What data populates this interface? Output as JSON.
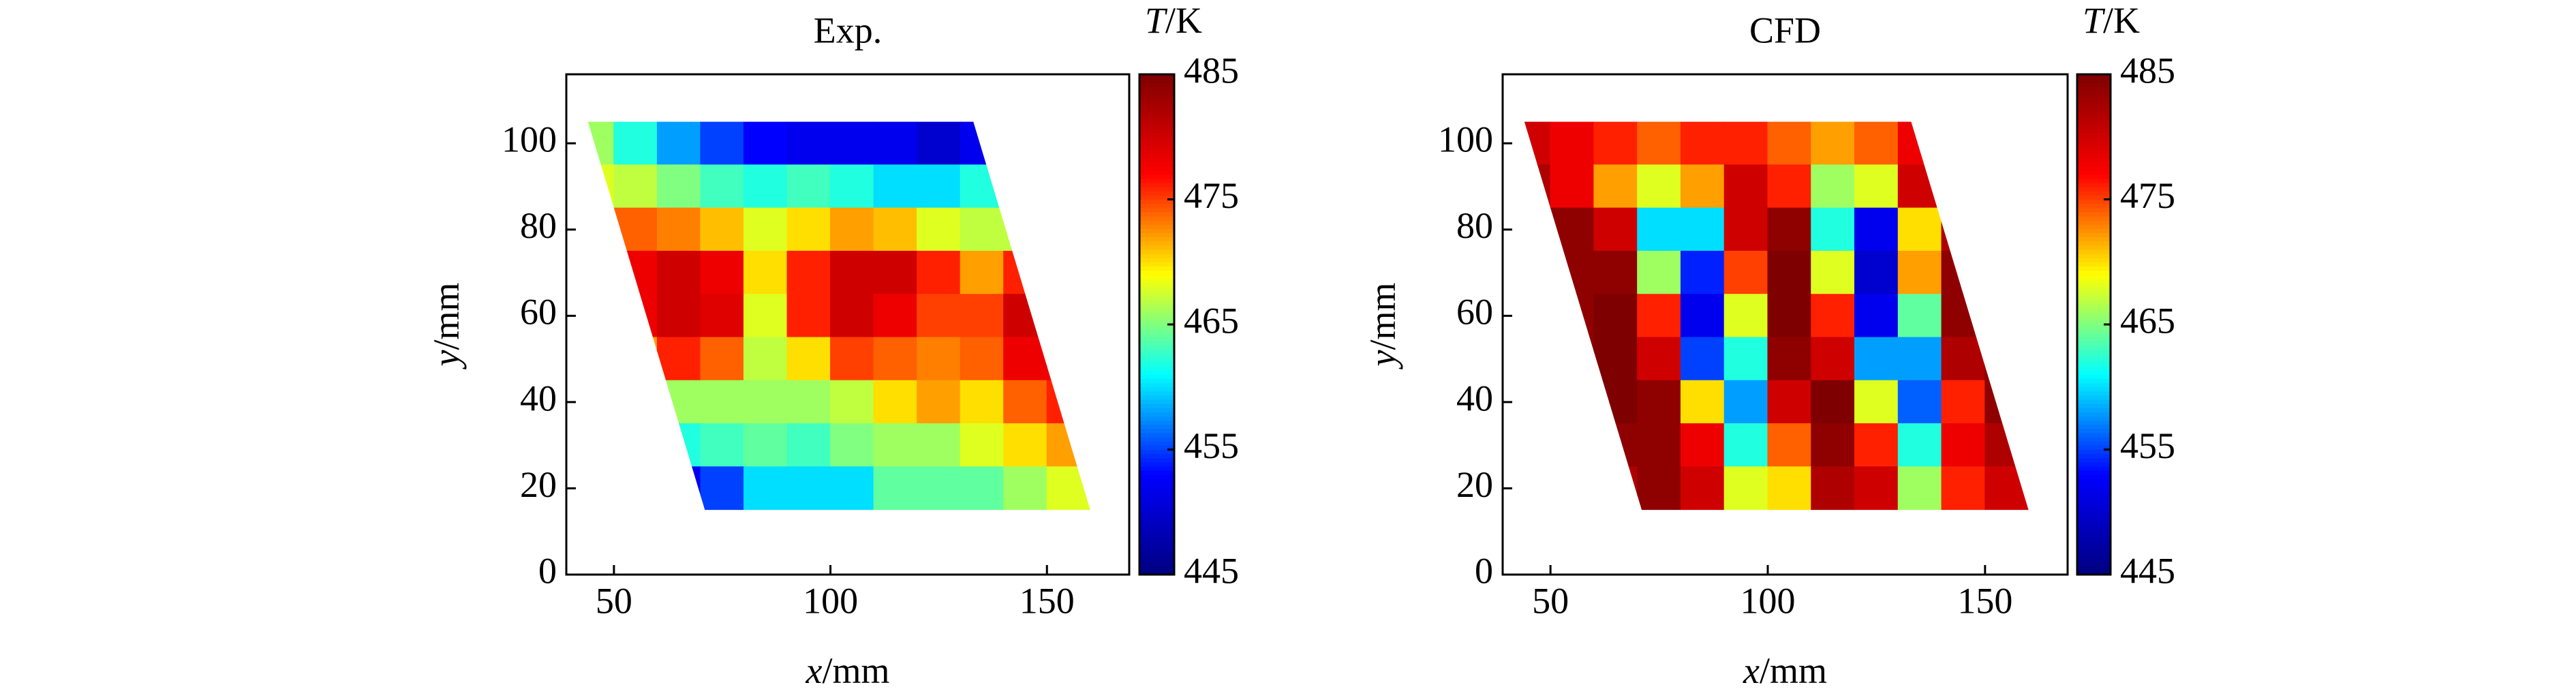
{
  "chart_data": [
    {
      "type": "contour",
      "title": "Exp.",
      "xlabel": {
        "symbol": "x",
        "unit": "/mm"
      },
      "ylabel": {
        "symbol": "y",
        "unit": "/mm"
      },
      "colorbar_label": {
        "symbol": "T",
        "unit": "/K"
      },
      "xlim": [
        39,
        169
      ],
      "ylim": [
        0,
        116
      ],
      "xticks": [
        50,
        100,
        150
      ],
      "yticks": [
        0,
        20,
        40,
        60,
        80,
        100
      ],
      "clim": [
        445,
        485
      ],
      "cticks": [
        445,
        455,
        465,
        475,
        485
      ],
      "colormap": [
        "#00007f",
        "#0000ff",
        "#00ffff",
        "#ffff00",
        "#ff0000",
        "#7f0000"
      ],
      "region": [
        [
          44,
          105
        ],
        [
          133,
          105
        ],
        [
          160,
          15
        ],
        [
          71,
          15
        ]
      ],
      "x": [
        45,
        55,
        65,
        75,
        85,
        95,
        105,
        115,
        125,
        135,
        145,
        155
      ],
      "y": [
        100,
        90,
        80,
        70,
        60,
        50,
        40,
        30,
        20
      ],
      "z": [
        [
          466,
          462,
          458,
          455,
          453,
          452,
          452,
          452,
          450,
          452,
          null,
          null
        ],
        [
          468,
          467,
          465,
          463,
          462,
          463,
          462,
          460,
          460,
          462,
          null,
          null
        ],
        [
          null,
          474,
          473,
          471,
          468,
          470,
          472,
          471,
          468,
          467,
          467,
          null
        ],
        [
          null,
          478,
          480,
          478,
          470,
          476,
          480,
          480,
          476,
          472,
          476,
          null
        ],
        [
          null,
          478,
          480,
          479,
          468,
          476,
          480,
          478,
          475,
          475,
          480,
          null
        ],
        [
          null,
          472,
          476,
          474,
          467,
          470,
          475,
          474,
          473,
          474,
          478,
          478
        ],
        [
          null,
          null,
          466,
          466,
          466,
          466,
          467,
          470,
          472,
          470,
          474,
          476
        ],
        [
          null,
          null,
          462,
          463,
          464,
          463,
          465,
          466,
          466,
          468,
          470,
          472
        ],
        [
          null,
          null,
          452,
          455,
          460,
          460,
          460,
          464,
          464,
          464,
          466,
          468
        ]
      ]
    },
    {
      "type": "contour",
      "title": "CFD",
      "xlabel": {
        "symbol": "x",
        "unit": "/mm"
      },
      "ylabel": {
        "symbol": "y",
        "unit": "/mm"
      },
      "colorbar_label": {
        "symbol": "T",
        "unit": "/K"
      },
      "xlim": [
        39,
        169
      ],
      "ylim": [
        0,
        116
      ],
      "xticks": [
        50,
        100,
        150
      ],
      "yticks": [
        0,
        20,
        40,
        60,
        80,
        100
      ],
      "clim": [
        445,
        485
      ],
      "cticks": [
        445,
        455,
        465,
        475,
        485
      ],
      "colormap": [
        "#00007f",
        "#0000ff",
        "#00ffff",
        "#ffff00",
        "#ff0000",
        "#7f0000"
      ],
      "region": [
        [
          44,
          105
        ],
        [
          133,
          105
        ],
        [
          160,
          15
        ],
        [
          71,
          15
        ]
      ],
      "x": [
        45,
        55,
        65,
        75,
        85,
        95,
        105,
        115,
        125,
        135,
        145,
        155
      ],
      "y": [
        100,
        90,
        80,
        70,
        60,
        50,
        40,
        30,
        20
      ],
      "z": [
        [
          480,
          478,
          476,
          474,
          476,
          476,
          474,
          472,
          474,
          478,
          null,
          null
        ],
        [
          482,
          478,
          472,
          468,
          472,
          480,
          476,
          466,
          468,
          480,
          null,
          null
        ],
        [
          null,
          484,
          480,
          460,
          460,
          480,
          484,
          462,
          452,
          470,
          482,
          null
        ],
        [
          null,
          484,
          484,
          466,
          454,
          475,
          485,
          468,
          450,
          472,
          484,
          null
        ],
        [
          null,
          484,
          485,
          476,
          452,
          468,
          485,
          476,
          452,
          464,
          484,
          null
        ],
        [
          null,
          484,
          485,
          480,
          455,
          462,
          484,
          480,
          458,
          458,
          482,
          484
        ],
        [
          null,
          null,
          485,
          484,
          470,
          458,
          480,
          485,
          468,
          456,
          476,
          484
        ],
        [
          null,
          null,
          484,
          484,
          478,
          462,
          474,
          484,
          476,
          462,
          478,
          482
        ],
        [
          null,
          null,
          482,
          484,
          480,
          468,
          470,
          482,
          480,
          466,
          476,
          480
        ]
      ]
    }
  ]
}
